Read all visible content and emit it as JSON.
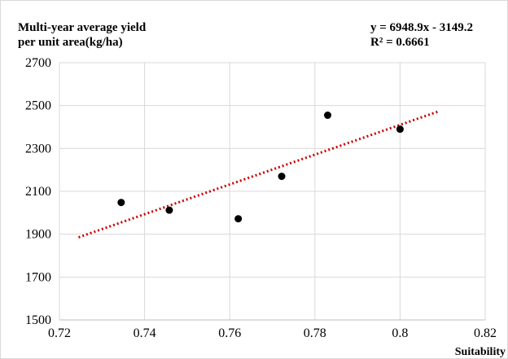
{
  "chart_data": {
    "type": "scatter",
    "title_lines": [
      "Multi-year average yield",
      "per unit area(kg/ha)"
    ],
    "xlabel": "Suitability",
    "ylabel": "",
    "xlim": [
      0.72,
      0.82
    ],
    "ylim": [
      1500,
      2700
    ],
    "x_ticks": [
      0.72,
      0.74,
      0.76,
      0.78,
      0.8,
      0.82
    ],
    "x_tick_labels": [
      "0.72",
      "0.74",
      "0.76",
      "0.78",
      "0.8",
      "0.82"
    ],
    "y_ticks": [
      1500,
      1700,
      1900,
      2100,
      2300,
      2500,
      2700
    ],
    "y_tick_labels": [
      "1500",
      "1700",
      "1900",
      "2100",
      "2300",
      "2500",
      "2700"
    ],
    "grid": true,
    "points": [
      {
        "x": 0.7345,
        "y": 2048
      },
      {
        "x": 0.7458,
        "y": 2012
      },
      {
        "x": 0.762,
        "y": 1972
      },
      {
        "x": 0.7722,
        "y": 2170
      },
      {
        "x": 0.783,
        "y": 2455
      },
      {
        "x": 0.8,
        "y": 2390
      }
    ],
    "trendline": {
      "slope": 6948.9,
      "intercept": -3149.2,
      "x_range": [
        0.7245,
        0.809
      ],
      "color": "#cc0000",
      "equation_label": "y = 6948.9x - 3149.2",
      "r2_label": "R² = 0.6661"
    },
    "colors": {
      "points": "#000000",
      "grid": "#d9d9d9",
      "frame": "#d9d9d9"
    }
  }
}
